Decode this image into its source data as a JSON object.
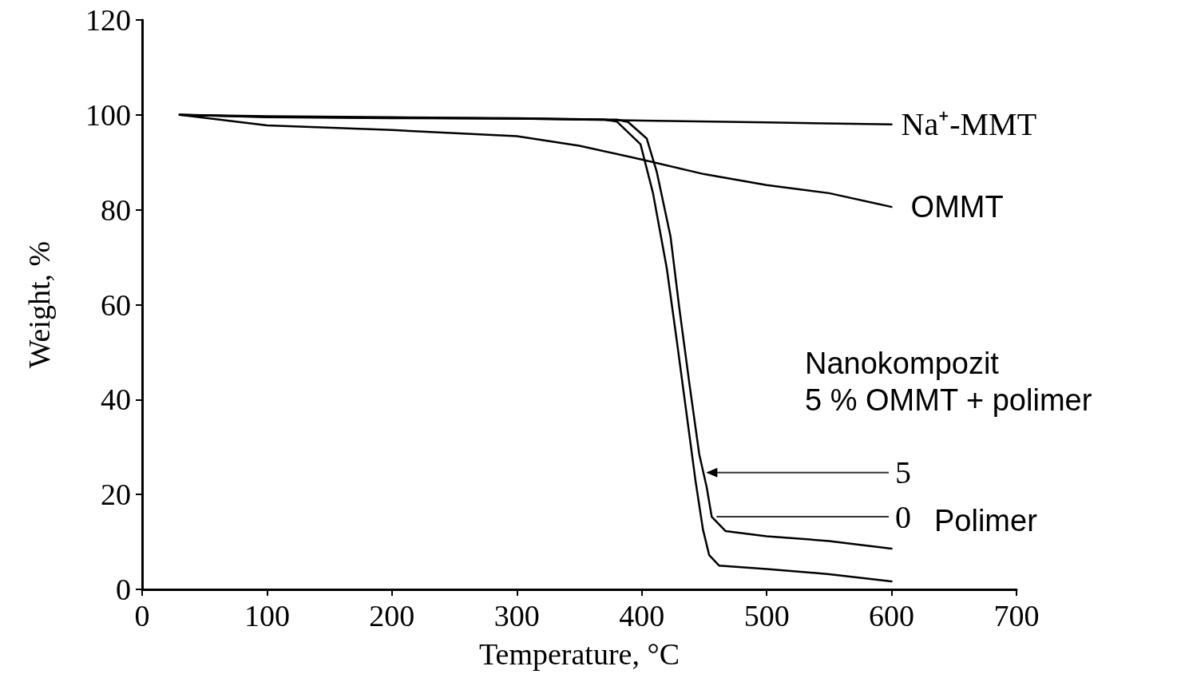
{
  "chart_data": {
    "type": "line",
    "xlabel": "Temperature, °C",
    "ylabel": "Weight, %",
    "xlim": [
      0,
      700
    ],
    "xticks": [
      0,
      100,
      200,
      300,
      400,
      500,
      600,
      700
    ],
    "ylim": [
      0,
      120
    ],
    "yticks": [
      0,
      20,
      40,
      60,
      80,
      100,
      120
    ],
    "grid": false,
    "legend": false,
    "marker": "none",
    "line_style": "solid",
    "series": [
      {
        "name": "Na⁺-MMT",
        "color": "#000000",
        "x": [
          30,
          100,
          200,
          300,
          400,
          500,
          600
        ],
        "values": [
          100,
          99.5,
          99.3,
          99.2,
          98.8,
          98.4,
          98
        ]
      },
      {
        "name": "OMMT",
        "color": "#000000",
        "x": [
          30,
          100,
          200,
          300,
          350,
          400,
          450,
          500,
          550,
          600
        ],
        "values": [
          100,
          97.8,
          96.8,
          95.5,
          93.5,
          90.6,
          87.5,
          85.2,
          83.5,
          80.6
        ]
      },
      {
        "color": "#000000",
        "x": [
          30,
          100,
          200,
          300,
          380,
          389,
          404,
          412,
          423,
          430,
          438,
          446,
          452,
          456,
          467,
          500,
          550,
          600
        ],
        "values": [
          100,
          99.7,
          99.5,
          99.3,
          99,
          98.5,
          95,
          88,
          74.4,
          59.4,
          43.6,
          28.5,
          21.5,
          15.3,
          12.3,
          11.2,
          10.2,
          8.6
        ]
      },
      {
        "color": "#000000",
        "x": [
          30,
          100,
          200,
          300,
          370,
          380,
          399,
          409,
          420,
          428,
          435,
          443,
          449,
          454,
          462,
          500,
          550,
          600
        ],
        "values": [
          100,
          99.6,
          99.4,
          99.2,
          99,
          98.6,
          93.8,
          83.5,
          67.7,
          52.5,
          38.7,
          22.9,
          12.6,
          7.2,
          5,
          4.3,
          3.2,
          1.7
        ]
      }
    ],
    "annotations": [
      {
        "text": "5",
        "x": 449,
        "y": 24.6
      },
      {
        "text": "0",
        "x": 456,
        "y": 15.3
      },
      "Nanokompozit\n5 % OMMT + polimer",
      "Polimer"
    ]
  }
}
